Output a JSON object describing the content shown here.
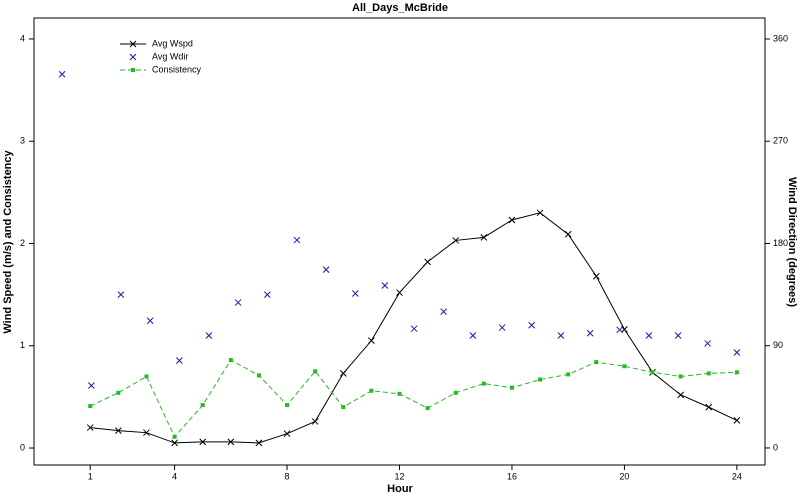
{
  "chart_data": {
    "type": "line",
    "title": "All_Days_McBride",
    "x_label": "Hour",
    "y_label": "Wind Speed (m/s) and Consistency",
    "y2_label": "Wind Direction (degrees)",
    "x": [
      1,
      2,
      3,
      4,
      5,
      6,
      7,
      8,
      9,
      10,
      11,
      12,
      13,
      14,
      15,
      16,
      17,
      18,
      19,
      20,
      21,
      22,
      23,
      24
    ],
    "xlim": [
      -1,
      25
    ],
    "xticks": [
      1,
      4,
      8,
      12,
      16,
      20,
      24
    ],
    "ylim": [
      -0.166,
      4.205
    ],
    "yticks": [
      0,
      1,
      2,
      3,
      4
    ],
    "y2lim": [
      -15,
      378.5
    ],
    "y2ticks": [
      0,
      90,
      180,
      270,
      360
    ],
    "legend": "upper left",
    "series": [
      {
        "name": "Avg Wspd",
        "color": "#000000",
        "line": "solid",
        "marker": "x",
        "values": [
          0.2,
          0.17,
          0.15,
          0.05,
          0.06,
          0.06,
          0.05,
          0.14,
          0.26,
          0.73,
          1.05,
          1.52,
          1.82,
          2.03,
          2.06,
          2.23,
          2.3,
          2.09,
          1.68,
          1.16,
          0.74,
          0.52,
          0.4,
          0.27
        ]
      },
      {
        "name": "Avg Wdir",
        "color": "#1a1ab0",
        "line": "none",
        "marker": "x",
        "axis": "y2",
        "x": [
          0,
          1.04,
          2.09,
          3.13,
          4.17,
          5.22,
          6.26,
          7.3,
          8.35,
          9.39,
          10.43,
          11.48,
          12.52,
          13.57,
          14.61,
          15.65,
          16.7,
          17.74,
          18.78,
          19.83,
          20.87,
          21.91,
          22.96,
          24
        ],
        "values": [
          329,
          55,
          135,
          112,
          77,
          99,
          128,
          135,
          183,
          157,
          136,
          143,
          105,
          120,
          99,
          106,
          108,
          99,
          101,
          104,
          99,
          99,
          92,
          84
        ]
      },
      {
        "name": "Consistency",
        "color": "#22bb22",
        "line": "dashed",
        "marker": "square",
        "values": [
          0.41,
          0.54,
          0.7,
          0.11,
          0.42,
          0.86,
          0.71,
          0.42,
          0.75,
          0.4,
          0.56,
          0.53,
          0.39,
          0.54,
          0.63,
          0.59,
          0.67,
          0.72,
          0.84,
          0.8,
          0.74,
          0.7,
          0.73,
          0.74
        ]
      }
    ]
  }
}
